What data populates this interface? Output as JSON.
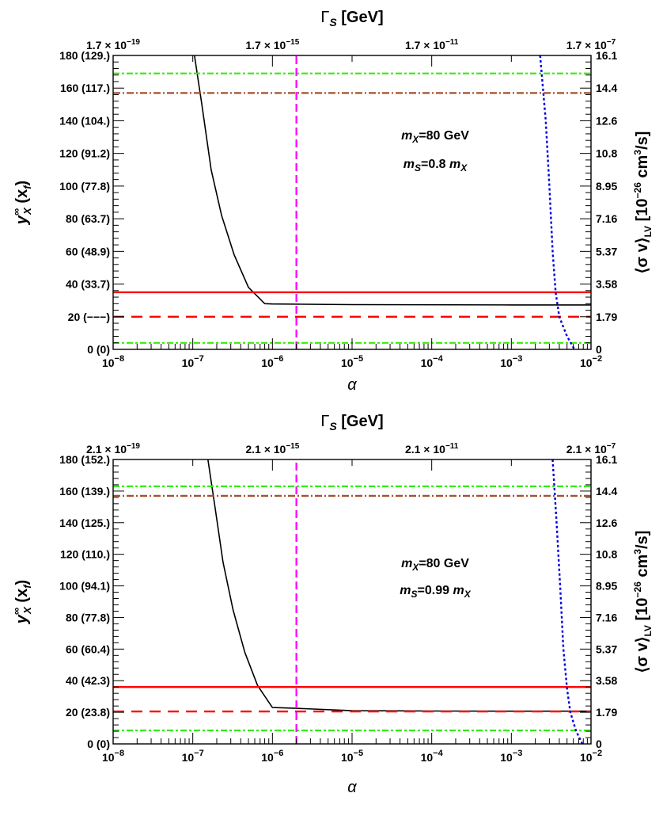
{
  "chart_data": [
    {
      "type": "line",
      "x_scale": "log",
      "xlim": [
        1e-08,
        0.01
      ],
      "ylim": [
        0,
        180
      ],
      "right_ylim": [
        0,
        16.1
      ],
      "xlabel": "α",
      "ylabel_main": "y",
      "ylabel_sup": "∞",
      "ylabel_sub": "X",
      "ylabel_extra": "(x",
      "ylabel_extra_sub": "f",
      "ylabel_close": ")",
      "top_axis_title": "Γ",
      "top_axis_title_sub": "S",
      "top_axis_title_unit": "[GeV]",
      "right_axis_label": "⟨σ v⟩",
      "right_axis_label_sub": "LV",
      "right_axis_label_unit": "[10",
      "right_axis_label_exp": "−26",
      "right_axis_label_unit2": "cm",
      "right_axis_label_exp2": "3",
      "right_axis_label_unit3": "/s]",
      "x_ticks": [
        {
          "v": 1e-08,
          "base": "10",
          "exp": "−8"
        },
        {
          "v": 1e-07,
          "base": "10",
          "exp": "−7"
        },
        {
          "v": 1e-06,
          "base": "10",
          "exp": "−6"
        },
        {
          "v": 1e-05,
          "base": "10",
          "exp": "−5"
        },
        {
          "v": 0.0001,
          "base": "10",
          "exp": "−4"
        },
        {
          "v": 0.001,
          "base": "10",
          "exp": "−3"
        },
        {
          "v": 0.01,
          "base": "10",
          "exp": "−2"
        }
      ],
      "top_ticks": [
        {
          "v": 1e-08,
          "mant": "1.7",
          "exp": "−19"
        },
        {
          "v": 1e-06,
          "mant": "1.7",
          "exp": "−15"
        },
        {
          "v": 0.0001,
          "mant": "1.7",
          "exp": "−11"
        },
        {
          "v": 0.01,
          "mant": "1.7",
          "exp": "−7"
        }
      ],
      "left_ticks": [
        {
          "v": 0,
          "label": "0 (0)"
        },
        {
          "v": 20,
          "label": "20 (−−−)"
        },
        {
          "v": 40,
          "label": "40 (33.7)"
        },
        {
          "v": 60,
          "label": "60 (48.9)"
        },
        {
          "v": 80,
          "label": "80 (63.7)"
        },
        {
          "v": 100,
          "label": "100 (77.8)"
        },
        {
          "v": 120,
          "label": "120 (91.2)"
        },
        {
          "v": 140,
          "label": "140 (104.)"
        },
        {
          "v": 160,
          "label": "160 (117.)"
        },
        {
          "v": 180,
          "label": "180 (129.)"
        }
      ],
      "right_ticks": [
        "0",
        "1.79",
        "3.58",
        "5.37",
        "7.16",
        "8.95",
        "10.8",
        "12.6",
        "14.4",
        "16.1"
      ],
      "annotations": [
        {
          "m": "m",
          "sub": "X",
          "rest": "=80 GeV"
        },
        {
          "m": "m",
          "sub": "S",
          "rest": "=0.8 ",
          "m2": "m",
          "sub2": "X"
        }
      ],
      "series": [
        {
          "style": "black-solid",
          "color": "#000000",
          "points": [
            [
              1.05e-07,
              180
            ],
            [
              1.3e-07,
              150
            ],
            [
              1.7e-07,
              110
            ],
            [
              2.3e-07,
              82
            ],
            [
              3.3e-07,
              58
            ],
            [
              5e-07,
              38
            ],
            [
              8e-07,
              28
            ],
            [
              1e-06,
              27.8
            ],
            [
              1e-05,
              27.4
            ],
            [
              0.001,
              27.2
            ],
            [
              0.01,
              27.2
            ]
          ]
        },
        {
          "style": "red-solid",
          "color": "#ff0000",
          "points": [
            [
              1e-08,
              35
            ],
            [
              0.01,
              35
            ]
          ]
        },
        {
          "style": "red-dashed",
          "color": "#ff0000",
          "points": [
            [
              1e-08,
              20
            ],
            [
              0.01,
              20
            ]
          ]
        },
        {
          "style": "green-dashed-upper",
          "color": "#33ee00",
          "points": [
            [
              1e-08,
              169
            ],
            [
              0.01,
              169
            ]
          ]
        },
        {
          "style": "green-dashed-lower",
          "color": "#33ee00",
          "points": [
            [
              1e-08,
              4
            ],
            [
              0.01,
              4
            ]
          ]
        },
        {
          "style": "brown-dashdot",
          "color": "#a0522d",
          "points": [
            [
              1e-08,
              157
            ],
            [
              0.01,
              157
            ]
          ]
        },
        {
          "style": "magenta-vertical",
          "color": "#ff00ff",
          "points": [
            [
              2e-06,
              0
            ],
            [
              2e-06,
              180
            ]
          ]
        },
        {
          "style": "blue-dotted",
          "color": "#0000dd",
          "points": [
            [
              0.0023,
              180
            ],
            [
              0.0027,
              140
            ],
            [
              0.003,
              100
            ],
            [
              0.0033,
              60
            ],
            [
              0.0036,
              35
            ],
            [
              0.004,
              20
            ],
            [
              0.005,
              8
            ],
            [
              0.0062,
              0
            ]
          ]
        }
      ]
    },
    {
      "type": "line",
      "x_scale": "log",
      "xlim": [
        1e-08,
        0.01
      ],
      "ylim": [
        0,
        180
      ],
      "right_ylim": [
        0,
        16.1
      ],
      "xlabel": "α",
      "ylabel_main": "y",
      "ylabel_sup": "∞",
      "ylabel_sub": "X",
      "ylabel_extra": "(x",
      "ylabel_extra_sub": "f",
      "ylabel_close": ")",
      "top_axis_title": "Γ",
      "top_axis_title_sub": "S",
      "top_axis_title_unit": "[GeV]",
      "right_axis_label": "⟨σ v⟩",
      "right_axis_label_sub": "LV",
      "right_axis_label_unit": "[10",
      "right_axis_label_exp": "−26",
      "right_axis_label_unit2": "cm",
      "right_axis_label_exp2": "3",
      "right_axis_label_unit3": "/s]",
      "x_ticks": [
        {
          "v": 1e-08,
          "base": "10",
          "exp": "−8"
        },
        {
          "v": 1e-07,
          "base": "10",
          "exp": "−7"
        },
        {
          "v": 1e-06,
          "base": "10",
          "exp": "−6"
        },
        {
          "v": 1e-05,
          "base": "10",
          "exp": "−5"
        },
        {
          "v": 0.0001,
          "base": "10",
          "exp": "−4"
        },
        {
          "v": 0.001,
          "base": "10",
          "exp": "−3"
        },
        {
          "v": 0.01,
          "base": "10",
          "exp": "−2"
        }
      ],
      "top_ticks": [
        {
          "v": 1e-08,
          "mant": "2.1",
          "exp": "−19"
        },
        {
          "v": 1e-06,
          "mant": "2.1",
          "exp": "−15"
        },
        {
          "v": 0.0001,
          "mant": "2.1",
          "exp": "−11"
        },
        {
          "v": 0.01,
          "mant": "2.1",
          "exp": "−7"
        }
      ],
      "left_ticks": [
        {
          "v": 0,
          "label": "0 (0)"
        },
        {
          "v": 20,
          "label": "20 (23.8)"
        },
        {
          "v": 40,
          "label": "40 (42.3)"
        },
        {
          "v": 60,
          "label": "60 (60.4)"
        },
        {
          "v": 80,
          "label": "80 (77.8)"
        },
        {
          "v": 100,
          "label": "100 (94.1)"
        },
        {
          "v": 120,
          "label": "120 (110.)"
        },
        {
          "v": 140,
          "label": "140 (125.)"
        },
        {
          "v": 160,
          "label": "160 (139.)"
        },
        {
          "v": 180,
          "label": "180 (152.)"
        }
      ],
      "right_ticks": [
        "0",
        "1.79",
        "3.58",
        "5.37",
        "7.16",
        "8.95",
        "10.8",
        "12.6",
        "14.4",
        "16.1"
      ],
      "annotations": [
        {
          "m": "m",
          "sub": "X",
          "rest": "=80 GeV"
        },
        {
          "m": "m",
          "sub": "S",
          "rest": "=0.99 ",
          "m2": "m",
          "sub2": "X"
        }
      ],
      "series": [
        {
          "style": "black-solid",
          "color": "#000000",
          "points": [
            [
              1.55e-07,
              180
            ],
            [
              1.9e-07,
              150
            ],
            [
              2.4e-07,
              115
            ],
            [
              3.2e-07,
              85
            ],
            [
              4.5e-07,
              58
            ],
            [
              6.5e-07,
              37
            ],
            [
              1e-06,
              23
            ],
            [
              2e-06,
              22.5
            ],
            [
              1e-05,
              21
            ],
            [
              0.0001,
              20.8
            ],
            [
              0.001,
              20.7
            ],
            [
              0.01,
              20.7
            ]
          ]
        },
        {
          "style": "red-solid",
          "color": "#ff0000",
          "points": [
            [
              1e-08,
              36
            ],
            [
              0.01,
              36
            ]
          ]
        },
        {
          "style": "red-dashed",
          "color": "#ff0000",
          "points": [
            [
              1e-08,
              20.5
            ],
            [
              0.01,
              20.5
            ]
          ]
        },
        {
          "style": "green-dashed-upper",
          "color": "#33ee00",
          "points": [
            [
              1e-08,
              163
            ],
            [
              0.01,
              163
            ]
          ]
        },
        {
          "style": "green-dashed-lower",
          "color": "#33ee00",
          "points": [
            [
              1e-08,
              8.5
            ],
            [
              0.01,
              8.5
            ]
          ]
        },
        {
          "style": "brown-dashdot",
          "color": "#a0522d",
          "points": [
            [
              1e-08,
              157
            ],
            [
              0.01,
              157
            ]
          ]
        },
        {
          "style": "magenta-vertical",
          "color": "#ff00ff",
          "points": [
            [
              2e-06,
              0
            ],
            [
              2e-06,
              180
            ]
          ]
        },
        {
          "style": "blue-dotted",
          "color": "#0000dd",
          "points": [
            [
              0.0033,
              180
            ],
            [
              0.0037,
              140
            ],
            [
              0.0041,
              100
            ],
            [
              0.0045,
              60
            ],
            [
              0.005,
              35
            ],
            [
              0.0055,
              20
            ],
            [
              0.0065,
              8
            ],
            [
              0.0078,
              0
            ]
          ]
        }
      ]
    }
  ]
}
